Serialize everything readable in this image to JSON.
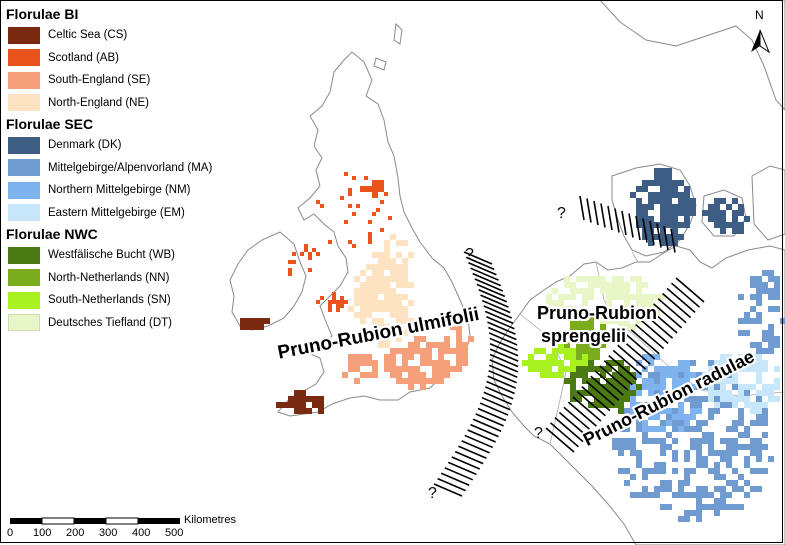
{
  "legend": {
    "groups": [
      {
        "title": "Florulae BI",
        "items": [
          {
            "label": "Celtic Sea (CS)",
            "color": "#7a2a10"
          },
          {
            "label": "Scotland (AB)",
            "color": "#e8541c"
          },
          {
            "label": "South-England (SE)",
            "color": "#f5a07a"
          },
          {
            "label": "North-England (NE)",
            "color": "#fde3c2"
          }
        ]
      },
      {
        "title": "Florulae SEC",
        "items": [
          {
            "label": "Denmark (DK)",
            "color": "#3d5d84"
          },
          {
            "label": "Mittelgebirge/Alpenvorland (MA)",
            "color": "#6f9bd0"
          },
          {
            "label": "Northern Mittelgebirge (NM)",
            "color": "#7fb3f0"
          },
          {
            "label": "Eastern Mittelgebirge (EM)",
            "color": "#c7e6fa"
          }
        ]
      },
      {
        "title": "Florulae NWC",
        "items": [
          {
            "label": "Westfälische Bucht (WB)",
            "color": "#4b7a12"
          },
          {
            "label": "North-Netherlands (NN)",
            "color": "#7aac1e"
          },
          {
            "label": "South-Netherlands (SN)",
            "color": "#a8f020"
          },
          {
            "label": "Deutsches Tiefland (DT)",
            "color": "#e8f6c8"
          }
        ]
      }
    ]
  },
  "labels": {
    "ulmifolii": "Pruno-Rubion ulmifolii",
    "sprengelii_1": "Pruno-Rubion",
    "sprengelii_2": "sprengelii",
    "radulae": "Pruno-Rubion radulae"
  },
  "uncertain_mark": "?",
  "north_arrow": {
    "label": "N"
  },
  "scale_bar": {
    "unit": "Kilometres",
    "ticks": [
      "0",
      "100",
      "200",
      "300",
      "400",
      "500"
    ]
  }
}
